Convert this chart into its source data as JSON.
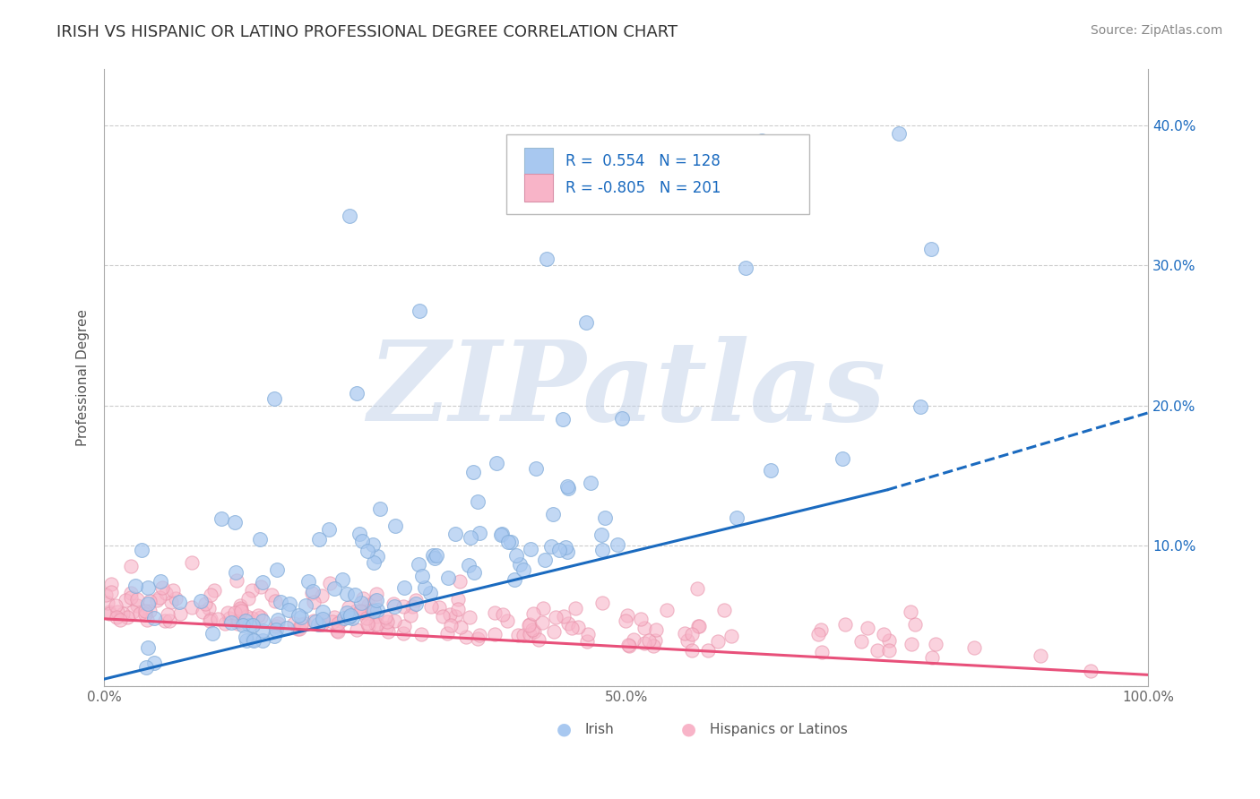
{
  "title": "IRISH VS HISPANIC OR LATINO PROFESSIONAL DEGREE CORRELATION CHART",
  "source_text": "Source: ZipAtlas.com",
  "ylabel": "Professional Degree",
  "x_min": 0.0,
  "x_max": 1.0,
  "y_min": 0.0,
  "y_max": 0.44,
  "x_ticks": [
    0.0,
    0.1,
    0.2,
    0.3,
    0.4,
    0.5,
    0.6,
    0.7,
    0.8,
    0.9,
    1.0
  ],
  "x_tick_labels": [
    "0.0%",
    "",
    "",
    "",
    "",
    "50.0%",
    "",
    "",
    "",
    "",
    "100.0%"
  ],
  "y_ticks": [
    0.0,
    0.1,
    0.2,
    0.3,
    0.4
  ],
  "y_tick_labels": [
    "",
    "",
    "",
    "",
    ""
  ],
  "right_y_ticks": [
    0.1,
    0.2,
    0.3,
    0.4
  ],
  "right_y_tick_labels": [
    "10.0%",
    "20.0%",
    "30.0%",
    "40.0%"
  ],
  "legend_label1": "Irish",
  "legend_label2": "Hispanics or Latinos",
  "r1": 0.554,
  "n1": 128,
  "r2": -0.805,
  "n2": 201,
  "irish_color": "#a8c8f0",
  "irish_edge_color": "#7faad8",
  "hispanic_color": "#f8b4c8",
  "hispanic_edge_color": "#e890a8",
  "irish_line_color": "#1a6abf",
  "hispanic_line_color": "#e8507a",
  "background_color": "#ffffff",
  "grid_color": "#cccccc",
  "title_fontsize": 13,
  "watermark": "ZIPatlas",
  "watermark_color": "#c0d0e8",
  "irish_line_x": [
    0.0,
    0.75
  ],
  "irish_line_y": [
    0.005,
    0.14
  ],
  "irish_dashed_line_x": [
    0.75,
    1.0
  ],
  "irish_dashed_line_y": [
    0.14,
    0.195
  ],
  "hispanic_line_x": [
    0.0,
    1.0
  ],
  "hispanic_line_y": [
    0.048,
    0.008
  ]
}
